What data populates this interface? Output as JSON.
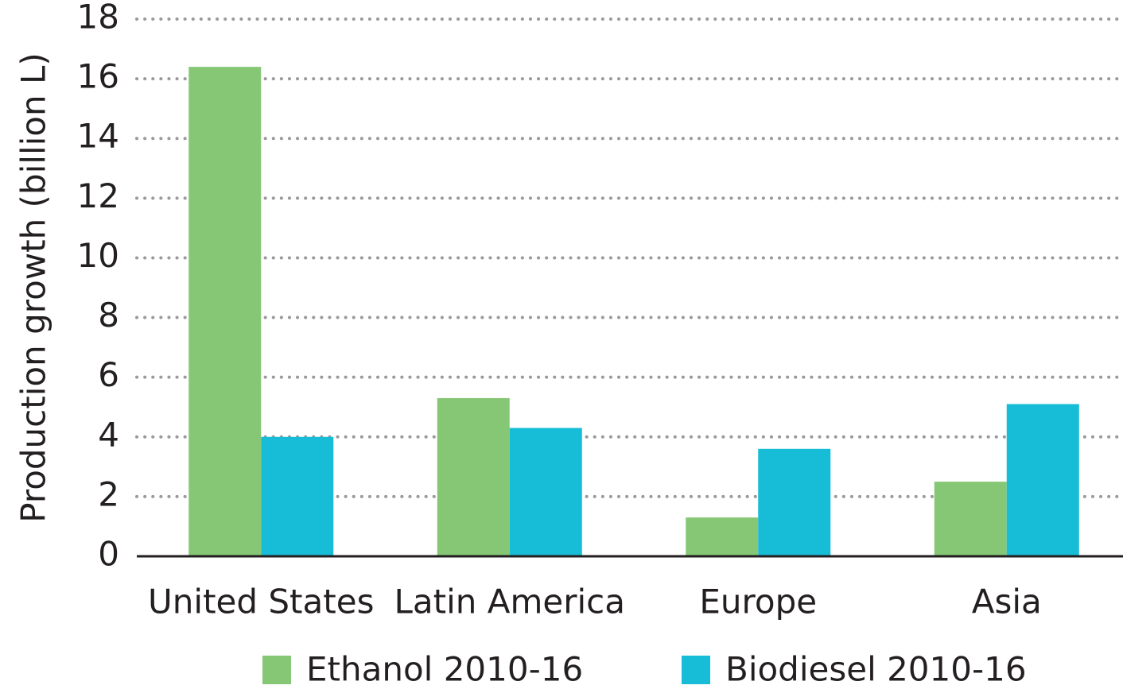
{
  "chart_data": {
    "type": "bar",
    "y_label": "Production growth (billion L)",
    "categories": [
      "United States",
      "Latin America",
      "Europe",
      "Asia"
    ],
    "series": [
      {
        "name": "Ethanol 2010-16",
        "color": "#86c776",
        "values": [
          16.4,
          5.3,
          1.3,
          2.5
        ]
      },
      {
        "name": "Biodiesel 2010-16",
        "color": "#17bcd6",
        "values": [
          4.0,
          4.3,
          3.6,
          5.1
        ]
      }
    ],
    "ylim": [
      0,
      18
    ],
    "yticks": [
      0,
      2,
      4,
      6,
      8,
      10,
      12,
      14,
      16,
      18
    ],
    "grid": true
  }
}
